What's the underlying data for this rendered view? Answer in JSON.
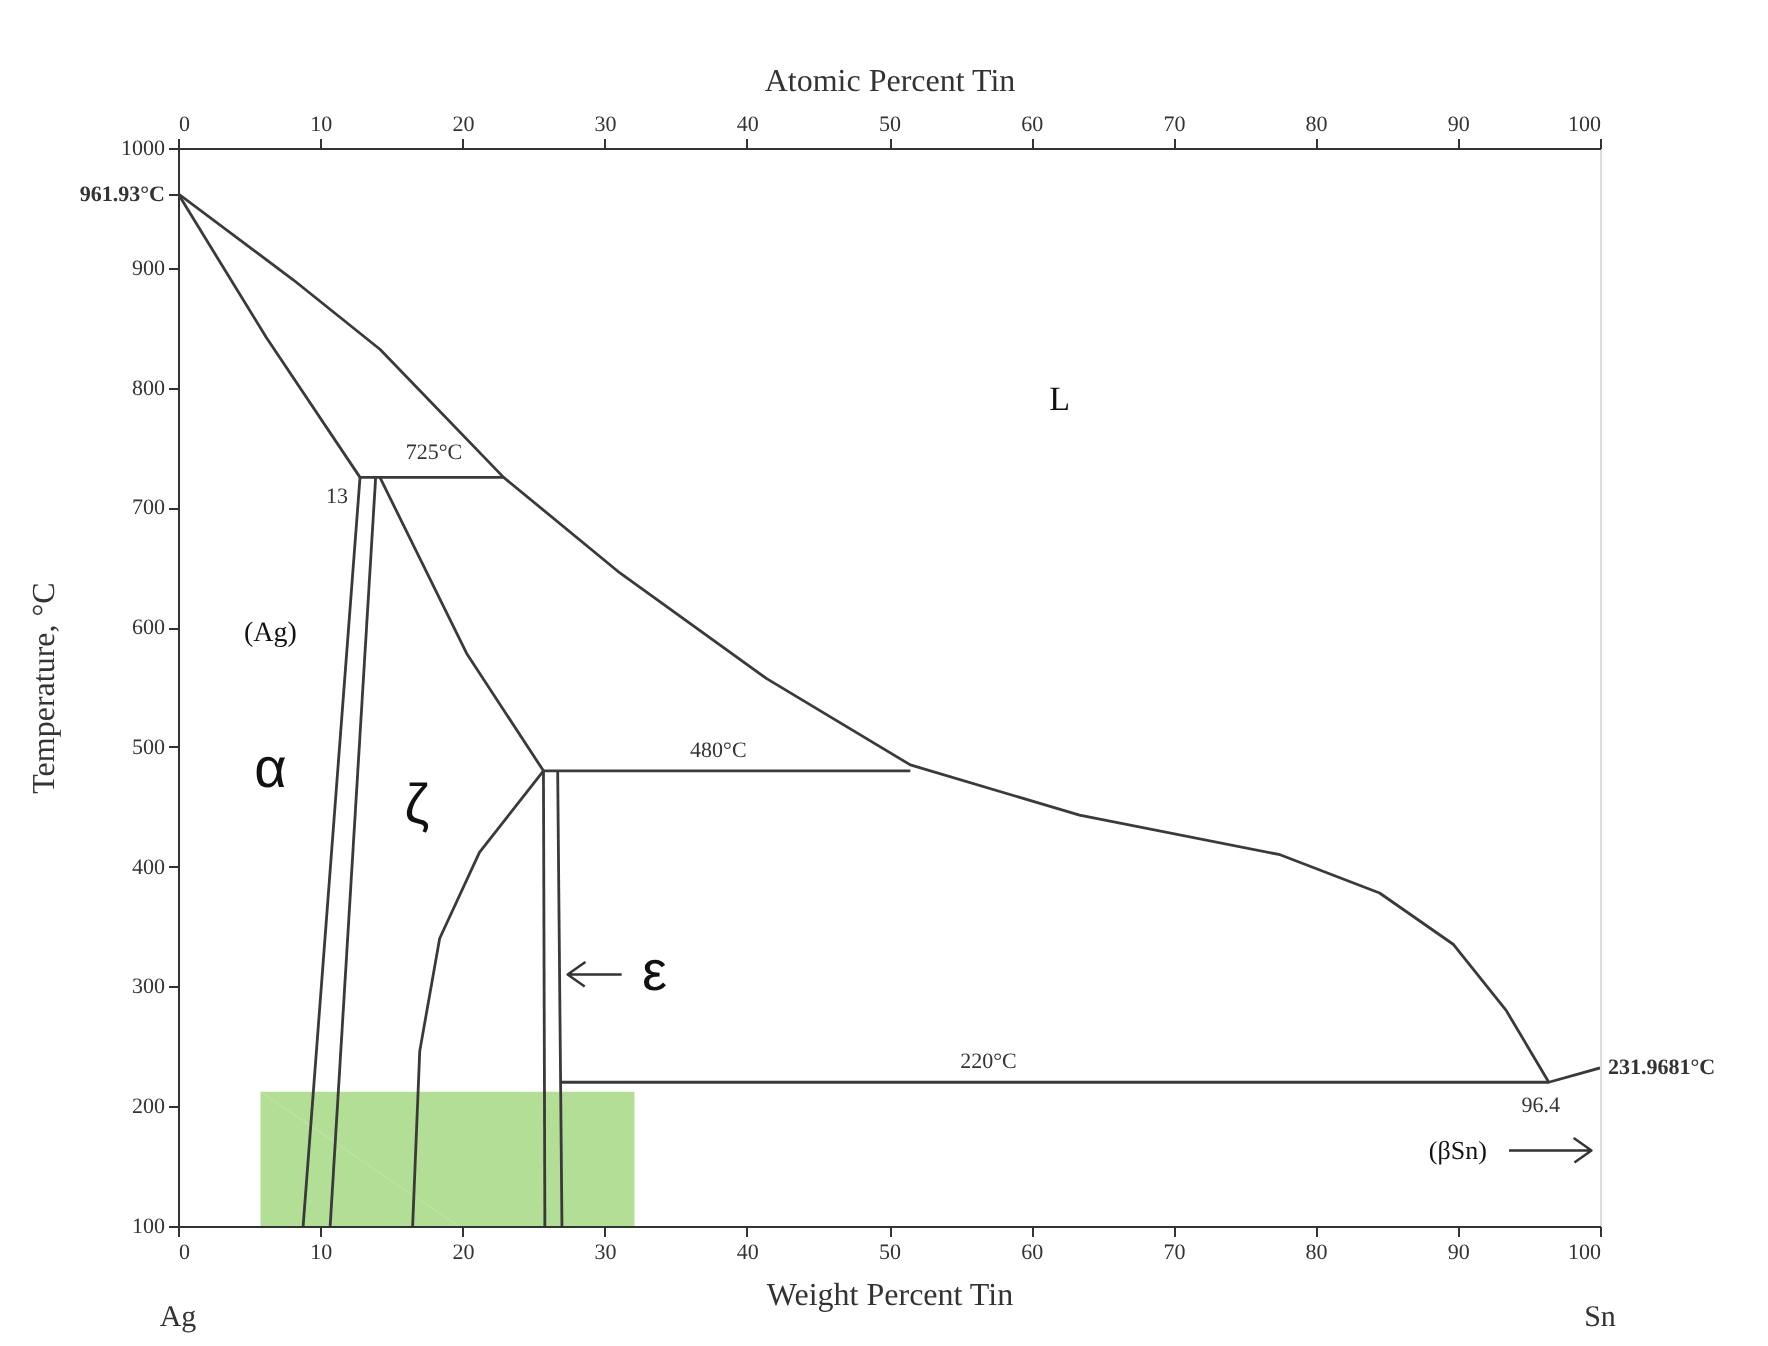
{
  "chart_data": {
    "type": "line",
    "xlabel": "Weight Percent Tin",
    "ylabel": "Temperature, °C",
    "x2label": "Atomic Percent Tin",
    "xlim": [
      0,
      100
    ],
    "xticks": [
      0,
      10,
      20,
      30,
      40,
      50,
      60,
      70,
      80,
      90,
      100
    ],
    "ylim": [
      100,
      1000
    ],
    "yticks": [
      100,
      200,
      300,
      400,
      500,
      600,
      700,
      800,
      900,
      {
        "value": 961.93,
        "label": "961.93°C"
      },
      1000
    ],
    "x2lim": [
      0,
      100
    ],
    "x2ticks": [
      0,
      10,
      20,
      30,
      40,
      50,
      60,
      70,
      80,
      90,
      100
    ],
    "grid": false,
    "series": [
      {
        "type": "area",
        "color": "#b3de96",
        "x": [
          5.8,
          32.1
        ],
        "values": [
          212,
          212
        ]
      },
      {
        "color": "#3a3a3a",
        "x": [
          0,
          8.1,
          14.2,
          22.9,
          31.1,
          41.4,
          51.5,
          63.4,
          77.5,
          84.5,
          89.7,
          93.4,
          96.4
        ],
        "values": [
          961.93,
          890,
          832,
          725,
          645,
          557,
          485,
          443,
          410,
          378,
          335,
          280,
          220
        ]
      },
      {
        "color": "#3a3a3a",
        "x": [
          0,
          6.2,
          12.8
        ],
        "values": [
          961.93,
          842,
          725
        ]
      },
      {
        "color": "#3a3a3a",
        "x": [
          12.8,
          22.9
        ],
        "values": [
          725,
          725
        ]
      },
      {
        "color": "#3a3a3a",
        "x": [
          12.8,
          8.8
        ],
        "values": [
          725,
          100
        ]
      },
      {
        "color": "#3a3a3a",
        "x": [
          13.9,
          10.7
        ],
        "values": [
          725,
          100
        ]
      },
      {
        "color": "#3a3a3a",
        "x": [
          14.2,
          20.3,
          25.7
        ],
        "values": [
          725,
          578,
          480
        ]
      },
      {
        "color": "#3a3a3a",
        "x": [
          25.7,
          21.2,
          18.4,
          17,
          16.5
        ],
        "values": [
          480,
          412,
          340,
          246,
          100
        ]
      },
      {
        "color": "#3a3a3a",
        "x": [
          25.7,
          25.8
        ],
        "values": [
          480,
          100
        ]
      },
      {
        "color": "#3a3a3a",
        "x": [
          26.7,
          27
        ],
        "values": [
          480,
          100
        ]
      },
      {
        "color": "#3a3a3a",
        "x": [
          25.7,
          51.5
        ],
        "values": [
          480,
          480
        ]
      },
      {
        "color": "#3a3a3a",
        "x": [
          27,
          96.4,
          100
        ],
        "values": [
          220,
          220,
          231.97
        ]
      }
    ],
    "annotations": [
      {
        "text": "725°C",
        "x": 18,
        "y": 725
      },
      {
        "text": "13",
        "x": 12.8,
        "y": 725
      },
      {
        "text": "480°C",
        "x": 38,
        "y": 480
      },
      {
        "text": "220°C",
        "x": 57,
        "y": 220
      },
      {
        "text": "96.4",
        "x": 96.4,
        "y": 220
      },
      {
        "text": "231.9681°C",
        "x": 100,
        "y": 231.97
      },
      "L",
      "(Ag)",
      "α",
      "ζ",
      "ε",
      "(βSn)",
      "Ag",
      "Sn"
    ]
  }
}
